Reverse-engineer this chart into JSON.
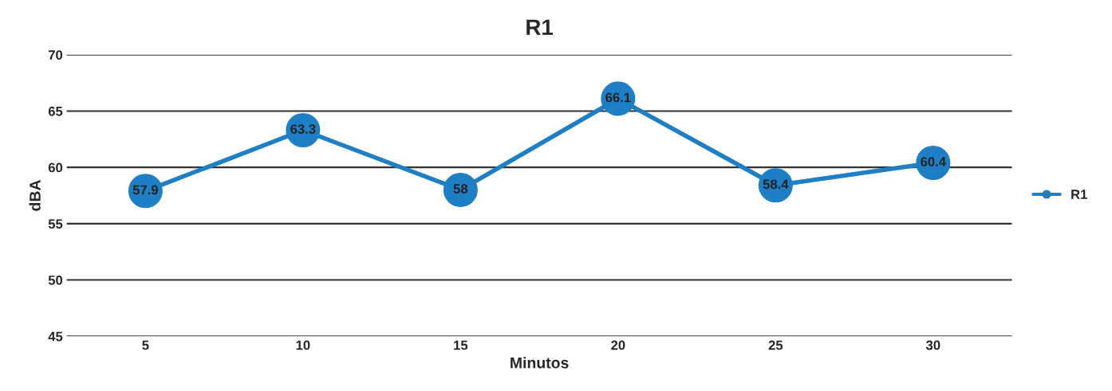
{
  "chart_data": {
    "type": "line",
    "title": "R1",
    "xlabel": "Minutos",
    "ylabel": "dBA",
    "categories": [
      "5",
      "10",
      "15",
      "20",
      "25",
      "30"
    ],
    "series": [
      {
        "name": "R1",
        "color": "#1f7fc4",
        "values": [
          57.9,
          63.3,
          58,
          66.1,
          58.4,
          60.4
        ]
      }
    ],
    "ylim": [
      45,
      70
    ],
    "yticks": [
      45,
      50,
      55,
      60,
      65,
      70
    ],
    "grid": "y",
    "legend": "right",
    "marker": "circle",
    "line_style": "solid",
    "data_labels": true
  }
}
